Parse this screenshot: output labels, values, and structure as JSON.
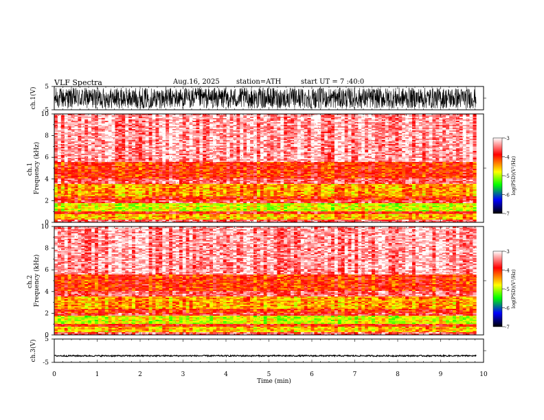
{
  "header": {
    "title": "VLF  Spectra",
    "date": "Aug.16,  2025",
    "station": "station=ATH",
    "start": "start  UT  =   7 :40:0"
  },
  "chart_data": [
    {
      "type": "line",
      "name": "ch1-waveform",
      "ylabel": "ch.1(V)",
      "ylim": [
        -5,
        5
      ],
      "ytick_labels": [
        "5",
        "-5"
      ],
      "xlim": [
        0,
        10
      ],
      "data_end_min": 9.83,
      "amplitude_typical_v": 4.5,
      "style": "dense"
    },
    {
      "type": "heatmap",
      "name": "ch1-spectrogram",
      "ylabel": "ch.1\nFrequency  (kHz)",
      "ylabel_lines": [
        "ch.1",
        "Frequency  (kHz)"
      ],
      "ylim": [
        0,
        10
      ],
      "ytick_labels": [
        "10",
        "8",
        "6",
        "4",
        "2",
        "0"
      ],
      "xlim": [
        0,
        10
      ],
      "data_end_min": 9.83,
      "bands_khz": [
        {
          "from": 0.0,
          "to": 0.3,
          "level": -3.5
        },
        {
          "from": 0.3,
          "to": 0.8,
          "level": -4.4
        },
        {
          "from": 0.8,
          "to": 1.0,
          "level": -3.8
        },
        {
          "from": 1.0,
          "to": 1.8,
          "level": -4.7
        },
        {
          "from": 1.8,
          "to": 2.0,
          "level": -3.6
        },
        {
          "from": 2.0,
          "to": 2.4,
          "level": -3.9
        },
        {
          "from": 2.4,
          "to": 3.6,
          "level": -4.3
        },
        {
          "from": 3.6,
          "to": 4.0,
          "level": -3.5
        },
        {
          "from": 4.0,
          "to": 5.6,
          "level": -3.9
        },
        {
          "from": 5.6,
          "to": 10.0,
          "level": -3.3
        }
      ],
      "colorbar": {
        "label": "log(PSD)(V²/Hz)",
        "range": [
          -7,
          -3
        ],
        "tick_labels": [
          "-3",
          "-4",
          "-5",
          "-6",
          "-7"
        ],
        "colors": [
          "#ffffff",
          "#ff0000",
          "#ffff00",
          "#00ff00",
          "#0000ff",
          "#000000"
        ]
      }
    },
    {
      "type": "heatmap",
      "name": "ch2-spectrogram",
      "ylabel": "ch.2\nFrequency  (kHz)",
      "ylabel_lines": [
        "ch.2",
        "Frequency  (kHz)"
      ],
      "ylim": [
        0,
        10
      ],
      "ytick_labels": [
        "10",
        "8",
        "6",
        "4",
        "2",
        "0"
      ],
      "xlim": [
        0,
        10
      ],
      "data_end_min": 9.83,
      "bands_khz": [
        {
          "from": 0.0,
          "to": 0.3,
          "level": -3.5
        },
        {
          "from": 0.3,
          "to": 0.8,
          "level": -4.4
        },
        {
          "from": 0.8,
          "to": 1.0,
          "level": -3.8
        },
        {
          "from": 1.0,
          "to": 1.8,
          "level": -4.7
        },
        {
          "from": 1.8,
          "to": 2.0,
          "level": -3.6
        },
        {
          "from": 2.0,
          "to": 2.4,
          "level": -3.9
        },
        {
          "from": 2.4,
          "to": 3.6,
          "level": -4.3
        },
        {
          "from": 3.6,
          "to": 4.0,
          "level": -3.5
        },
        {
          "from": 4.0,
          "to": 5.6,
          "level": -3.9
        },
        {
          "from": 5.6,
          "to": 10.0,
          "level": -3.3
        }
      ],
      "colorbar": {
        "label": "log(PSD)(V²/Hz)",
        "range": [
          -7,
          -3
        ],
        "tick_labels": [
          "-3",
          "-4",
          "-5",
          "-6",
          "-7"
        ],
        "colors": [
          "#ffffff",
          "#ff0000",
          "#ffff00",
          "#00ff00",
          "#0000ff",
          "#000000"
        ]
      }
    },
    {
      "type": "line",
      "name": "ch3-waveform",
      "ylabel": "ch.3(V)",
      "ylim": [
        -5,
        5
      ],
      "ytick_labels": [
        "5",
        "-5"
      ],
      "xlim": [
        0,
        10
      ],
      "data_end_min": 9.83,
      "offset_v": -2.2,
      "amplitude_typical_v": 0.3,
      "style": "thin"
    }
  ],
  "xaxis": {
    "label": "Time  (min)",
    "tick_labels": [
      "0",
      "1",
      "2",
      "3",
      "4",
      "5",
      "6",
      "7",
      "8",
      "9",
      "10"
    ],
    "range": [
      0,
      10
    ]
  }
}
